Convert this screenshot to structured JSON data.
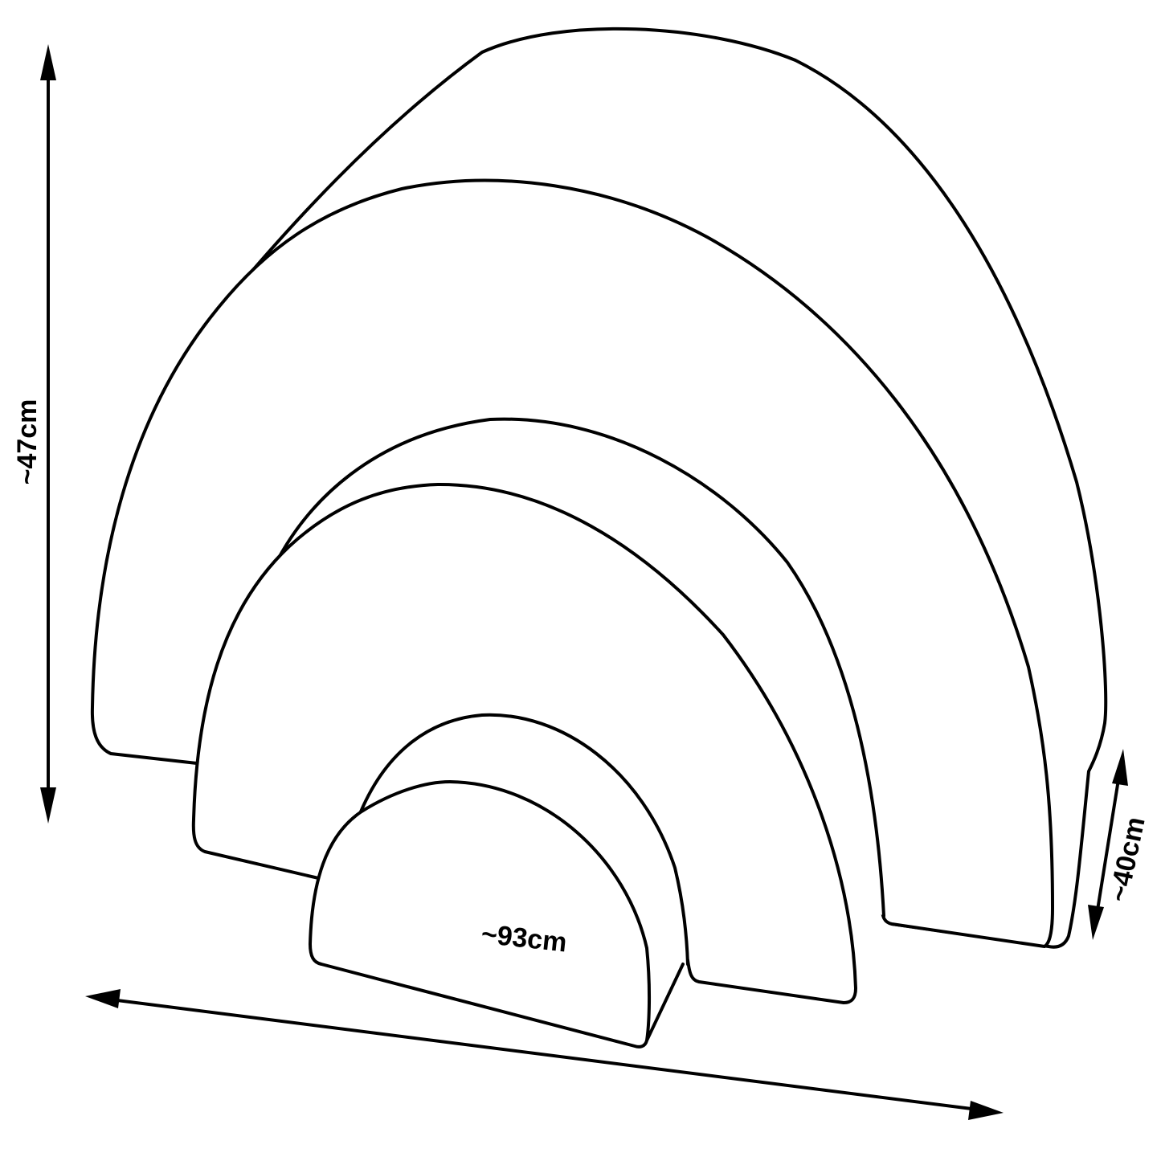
{
  "dimensions": {
    "height": "~47cm",
    "depth": "~40cm",
    "width": "~93cm"
  }
}
